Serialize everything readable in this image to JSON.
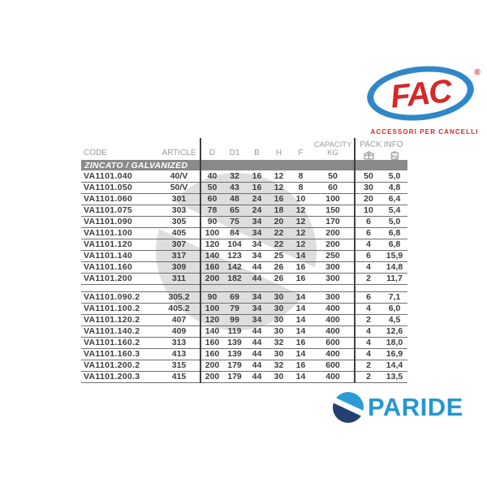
{
  "fac_logo": {
    "name": "FAC",
    "registered": "®",
    "tagline": "ACCESSORI PER CANCELLI",
    "colors": {
      "blue": "#2f87c7",
      "red": "#d5282a"
    }
  },
  "paride_logo": {
    "name": "PARIDE",
    "colors": {
      "light_blue": "#2496d3",
      "navy": "#25406e"
    }
  },
  "table": {
    "headers": {
      "code": "CODE",
      "article": "ARTICLE",
      "d": "D",
      "d1": "D1",
      "b": "B",
      "h": "H",
      "f": "F",
      "capacity_line1": "CAPACITY",
      "capacity_line2": "KG",
      "pack_info": "PACK INFO",
      "pack_icon_1": "package-icon",
      "pack_icon_2": "kg-weight-icon"
    },
    "columns": [
      "code",
      "article",
      "d",
      "d1",
      "b",
      "h",
      "f",
      "capacity_kg",
      "pack_qty",
      "pack_kg"
    ],
    "sections": [
      {
        "label": "ZINCATO / GALVANIZED",
        "rows": [
          [
            "VA1101.040",
            "40/V",
            "40",
            "32",
            "16",
            "12",
            "8",
            "50",
            "50",
            "5,0"
          ],
          [
            "VA1101.050",
            "50/V",
            "50",
            "43",
            "16",
            "12",
            "8",
            "60",
            "30",
            "4,8"
          ],
          [
            "VA1101.060",
            "301",
            "60",
            "48",
            "24",
            "16",
            "10",
            "100",
            "20",
            "6,4"
          ],
          [
            "VA1101.075",
            "303",
            "78",
            "65",
            "24",
            "18",
            "12",
            "150",
            "10",
            "5,4"
          ],
          [
            "VA1101.090",
            "305",
            "90",
            "75",
            "34",
            "20",
            "12",
            "170",
            "6",
            "5,0"
          ],
          [
            "VA1101.100",
            "405",
            "100",
            "84",
            "34",
            "22",
            "12",
            "200",
            "6",
            "6,8"
          ],
          [
            "VA1101.120",
            "307",
            "120",
            "104",
            "34",
            "22",
            "12",
            "200",
            "4",
            "6,8"
          ],
          [
            "VA1101.140",
            "317",
            "140",
            "123",
            "34",
            "25",
            "14",
            "250",
            "6",
            "15,9"
          ],
          [
            "VA1101.160",
            "309",
            "160",
            "142",
            "44",
            "26",
            "16",
            "300",
            "4",
            "14,8"
          ],
          [
            "VA1101.200",
            "311",
            "200",
            "182",
            "44",
            "26",
            "16",
            "300",
            "2",
            "11,7"
          ]
        ]
      },
      {
        "label": "",
        "rows": [
          [
            "VA1101.090.2",
            "305.2",
            "90",
            "69",
            "34",
            "30",
            "14",
            "300",
            "6",
            "7,1"
          ],
          [
            "VA1101.100.2",
            "405.2",
            "100",
            "79",
            "34",
            "30",
            "14",
            "400",
            "4",
            "6,0"
          ],
          [
            "VA1101.120.2",
            "407",
            "120",
            "99",
            "34",
            "30",
            "14",
            "400",
            "2",
            "4,5"
          ],
          [
            "VA1101.140.2",
            "409",
            "140",
            "119",
            "44",
            "30",
            "14",
            "400",
            "4",
            "12,6"
          ],
          [
            "VA1101.160.2",
            "313",
            "160",
            "139",
            "44",
            "32",
            "16",
            "600",
            "4",
            "18,0"
          ],
          [
            "VA1101.160.3",
            "413",
            "160",
            "139",
            "44",
            "30",
            "14",
            "400",
            "4",
            "16,9"
          ],
          [
            "VA1101.200.2",
            "315",
            "200",
            "179",
            "44",
            "32",
            "16",
            "600",
            "2",
            "14,4"
          ],
          [
            "VA1101.200.3",
            "415",
            "200",
            "179",
            "44",
            "30",
            "14",
            "400",
            "2",
            "13,5"
          ]
        ]
      }
    ]
  }
}
